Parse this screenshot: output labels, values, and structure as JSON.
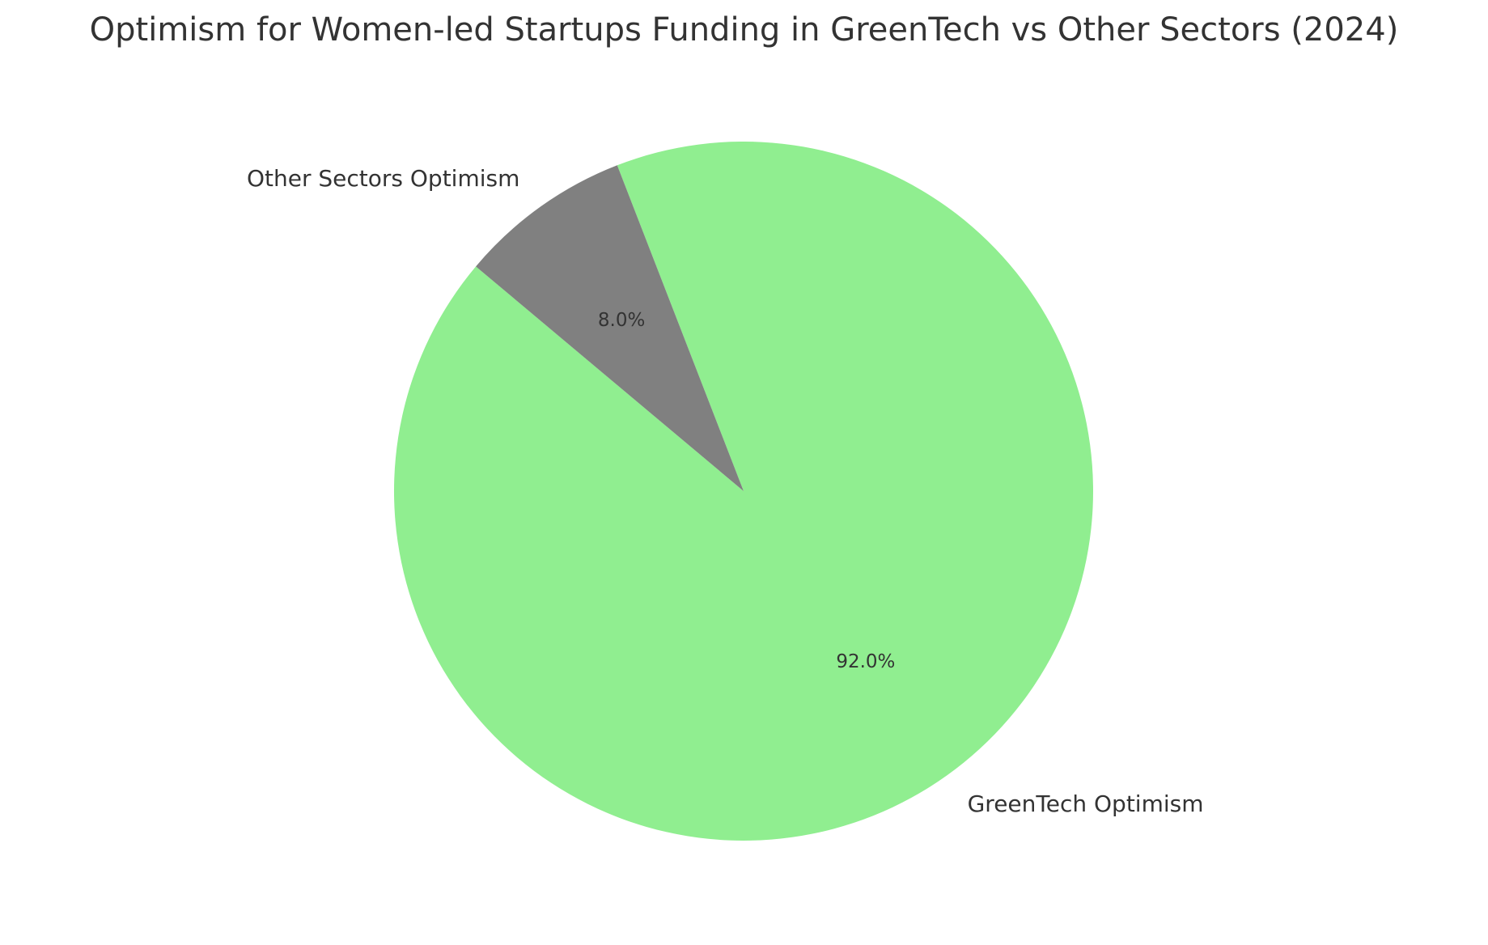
{
  "chart_data": {
    "type": "pie",
    "title": "Optimism for Women-led Startups Funding in GreenTech vs Other Sectors (2024)",
    "slices": [
      {
        "label": "GreenTech Optimism",
        "value": 92.0,
        "pct_label": "92.0%",
        "color": "#90ee90"
      },
      {
        "label": "Other Sectors Optimism",
        "value": 8.0,
        "pct_label": "8.0%",
        "color": "#808080"
      }
    ],
    "start_angle_deg": 140,
    "direction": "counterclockwise",
    "legend": "none"
  }
}
